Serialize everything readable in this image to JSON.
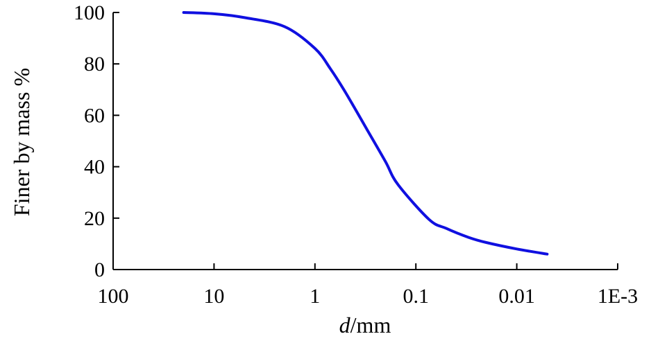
{
  "chart_data": {
    "type": "line",
    "xlabel_italic": "d",
    "xlabel_rest": "/mm",
    "ylabel": "Finer by mass %",
    "x_scale": "log",
    "x_reversed": true,
    "xlim": [
      100,
      0.001
    ],
    "ylim": [
      0,
      100
    ],
    "x_ticks": [
      100,
      10,
      1,
      0.1,
      0.01,
      0.001
    ],
    "x_tick_labels": [
      "100",
      "10",
      "1",
      "0.1",
      "0.01",
      "1E-3"
    ],
    "y_ticks": [
      0,
      20,
      40,
      60,
      80,
      100
    ],
    "y_tick_labels": [
      "0",
      "20",
      "40",
      "60",
      "80",
      "100"
    ],
    "grid": false,
    "series": [
      {
        "color": "#1010e0",
        "x": [
          20,
          10,
          5,
          2,
          1,
          0.7,
          0.5,
          0.3,
          0.2,
          0.15,
          0.074,
          0.05,
          0.03,
          0.02,
          0.01,
          0.005
        ],
        "y": [
          100,
          99.5,
          98,
          94.5,
          86,
          78,
          69,
          54,
          42,
          33,
          19.5,
          16,
          12.5,
          10.5,
          8,
          6
        ]
      }
    ]
  }
}
